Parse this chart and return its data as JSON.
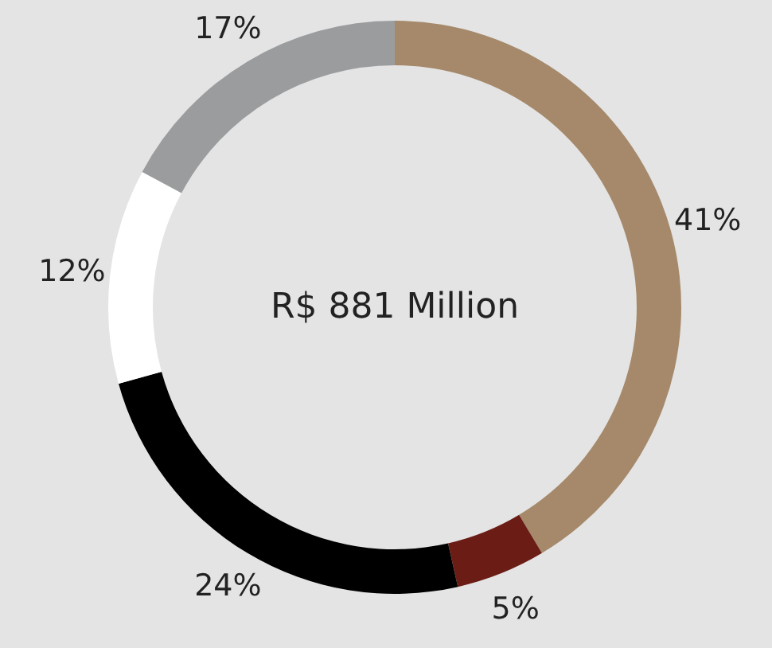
{
  "chart_data": {
    "type": "donut",
    "categories": [
      null,
      null,
      null,
      null,
      null
    ],
    "values": [
      41,
      5,
      24,
      12,
      17
    ],
    "colors": [
      "#a5896a",
      "#6b1c15",
      "#000000",
      "#ffffff",
      "#9b9c9e"
    ],
    "value_labels": [
      "41%",
      "5%",
      "24%",
      "12%",
      "17%"
    ],
    "annotations": [
      "R$ 881 Million"
    ]
  }
}
